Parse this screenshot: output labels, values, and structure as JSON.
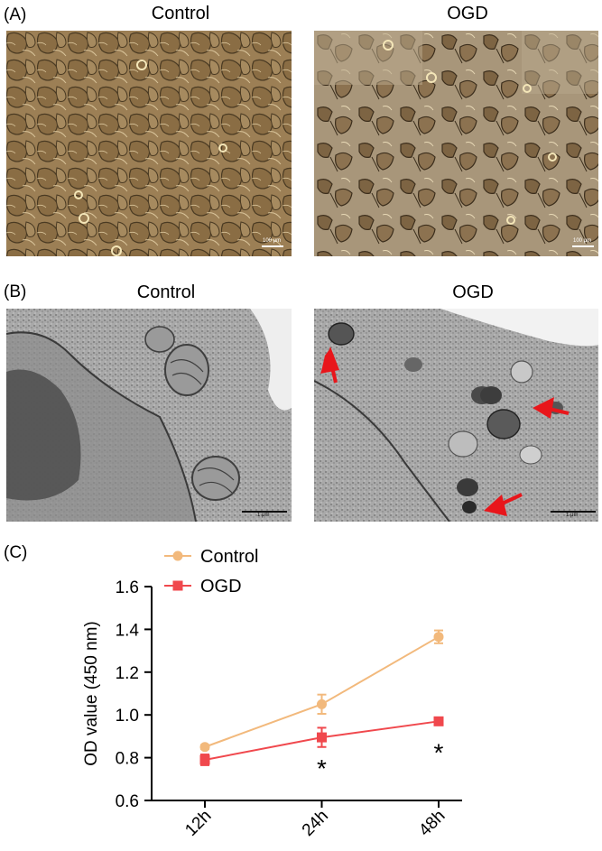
{
  "panel_a": {
    "letter": "(A)",
    "left_title": "Control",
    "right_title": "OGD",
    "scale_label": "100 μm"
  },
  "panel_b": {
    "letter": "(B)",
    "left_title": "Control",
    "right_title": "OGD",
    "scale_label": "1 μm",
    "arrow_color": "#e8161b"
  },
  "panel_c": {
    "letter": "(C)"
  },
  "chart_data": {
    "type": "line",
    "ylabel": "OD value (450 nm)",
    "xlabel": "",
    "categories": [
      "12h",
      "24h",
      "48h"
    ],
    "ylim": [
      0.6,
      1.6
    ],
    "yticks": [
      "0.6",
      "0.8",
      "1.0",
      "1.2",
      "1.4",
      "1.6"
    ],
    "series": [
      {
        "name": "Control",
        "values": [
          0.85,
          1.05,
          1.365
        ],
        "errors": [
          0.01,
          0.045,
          0.03
        ],
        "color": "#f2b97c",
        "marker": "circle"
      },
      {
        "name": "OGD",
        "values": [
          0.79,
          0.895,
          0.97
        ],
        "errors": [
          0.025,
          0.045,
          0.015
        ],
        "color": "#f0484d",
        "marker": "square"
      }
    ],
    "annotations": [
      "*",
      "*"
    ],
    "legend": "top-left"
  }
}
